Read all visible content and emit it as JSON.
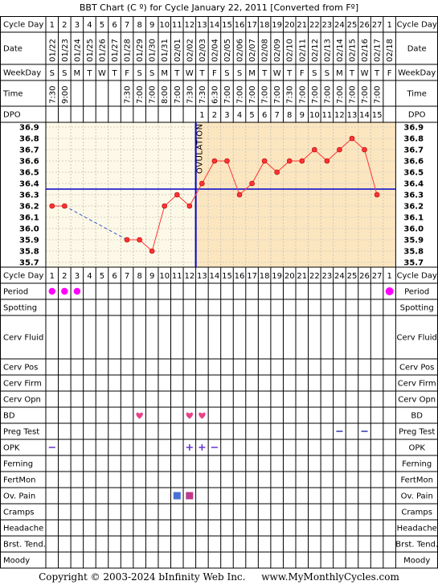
{
  "title": "BBT Chart (C º) for Cycle January 22, 2011  [Converted from Fº]",
  "footer": {
    "copyright": "Copyright © 2003-2024 bInfinity Web Inc.",
    "site": "www.MyMonthlyCycles.com"
  },
  "row_labels": {
    "cycle_day": "Cycle Day",
    "date": "Date",
    "weekday": "WeekDay",
    "time": "Time",
    "dpo": "DPO",
    "period": "Period",
    "spotting": "Spotting",
    "cerv_fluid": "Cerv Fluid",
    "cerv_pos": "Cerv Pos",
    "cerv_firm": "Cerv Firm",
    "cerv_opn": "Cerv Opn",
    "bd": "BD",
    "preg_test": "Preg Test",
    "opk": "OPK",
    "ferning": "Ferning",
    "fertmon": "FertMon",
    "ov_pain": "Ov. Pain",
    "cramps": "Cramps",
    "headache": "Headache",
    "brst_tend": "Brst. Tend.",
    "moody": "Moody"
  },
  "ovulation_label": "OVULATION",
  "colors": {
    "pre_ov_bg": "#fdf9e8",
    "post_ov_bg": "#fbe6c0",
    "temp_line": "#ff3333",
    "coverline": "#0000cc",
    "period_dot": "#ff00ff",
    "heart": "#e8438a",
    "opk_mark": "#6633cc",
    "preg_mark": "#3333aa"
  },
  "chart_data": {
    "type": "line",
    "days": [
      1,
      2,
      3,
      4,
      5,
      6,
      7,
      8,
      9,
      10,
      11,
      12,
      13,
      14,
      15,
      16,
      17,
      18,
      19,
      20,
      21,
      22,
      23,
      24,
      25,
      26,
      27,
      1
    ],
    "dates": [
      "01/22",
      "01/23",
      "01/24",
      "01/25",
      "01/26",
      "01/27",
      "01/28",
      "01/29",
      "01/30",
      "01/31",
      "02/01",
      "02/02",
      "02/03",
      "02/04",
      "02/05",
      "02/06",
      "02/07",
      "02/08",
      "02/09",
      "02/10",
      "02/11",
      "02/12",
      "02/13",
      "02/14",
      "02/15",
      "02/16",
      "02/17",
      "02/18"
    ],
    "weekdays": [
      "S",
      "S",
      "M",
      "T",
      "W",
      "T",
      "F",
      "S",
      "S",
      "M",
      "T",
      "W",
      "T",
      "F",
      "S",
      "S",
      "M",
      "T",
      "W",
      "T",
      "F",
      "S",
      "S",
      "M",
      "T",
      "W",
      "T",
      "F"
    ],
    "times": [
      "7:30",
      "9:00",
      "",
      "",
      "",
      "",
      "7:30",
      "7:00",
      "7:00",
      "8:00",
      "7:00",
      "7:30",
      "7:30",
      "6:30",
      "7:00",
      "7:00",
      "7:00",
      "7:00",
      "7:00",
      "7:30",
      "7:00",
      "7:00",
      "7:00",
      "7:00",
      "7:00",
      "7:00",
      "7:00",
      ""
    ],
    "dpo": [
      "",
      "",
      "",
      "",
      "",
      "",
      "",
      "",
      "",
      "",
      "",
      "",
      "1",
      "2",
      "3",
      "4",
      "5",
      "6",
      "7",
      "8",
      "9",
      "10",
      "11",
      "12",
      "13",
      "14",
      "15",
      ""
    ],
    "temps": [
      36.2,
      36.2,
      null,
      null,
      null,
      null,
      35.9,
      35.9,
      35.8,
      36.2,
      36.3,
      36.2,
      36.4,
      36.6,
      36.6,
      36.3,
      36.4,
      36.6,
      36.5,
      36.6,
      36.6,
      36.7,
      36.6,
      36.7,
      36.8,
      36.7,
      36.3,
      null
    ],
    "y_ticks": [
      36.9,
      36.8,
      36.7,
      36.6,
      36.5,
      36.4,
      36.3,
      36.2,
      36.1,
      36.0,
      35.9,
      35.8,
      35.7
    ],
    "ylim": [
      35.7,
      36.9
    ],
    "coverline": 36.35,
    "ovulation_after_day": 12,
    "period_days": [
      1,
      2,
      3,
      28
    ],
    "bd_days": [
      8,
      12,
      13
    ],
    "opk_negative_days": [
      1,
      14
    ],
    "opk_positive_days": [
      12,
      13
    ],
    "preg_test_negative_days": [
      24,
      26
    ],
    "ov_pain": [
      {
        "day": 11,
        "color": "#4a6fd6"
      },
      {
        "day": 12,
        "color": "#c0398a"
      }
    ]
  }
}
